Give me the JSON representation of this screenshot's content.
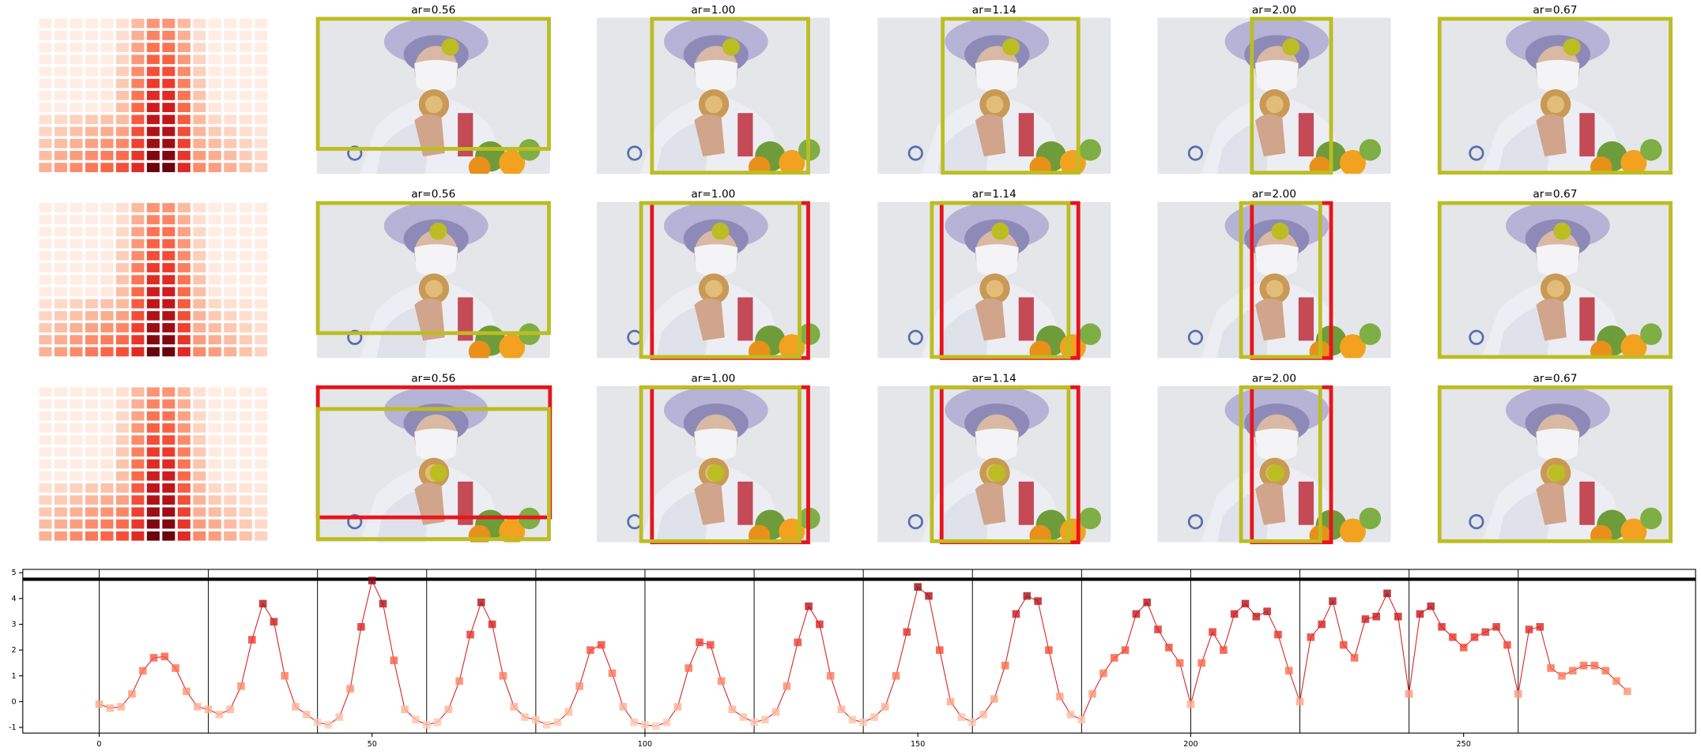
{
  "panel_titles": [
    [
      "ar=0.56",
      "ar=1.00",
      "ar=1.14",
      "ar=2.00",
      "ar=0.67"
    ],
    [
      "ar=0.56",
      "ar=1.00",
      "ar=1.14",
      "ar=2.00",
      "ar=0.67"
    ],
    [
      "ar=0.56",
      "ar=1.00",
      "ar=1.14",
      "ar=2.00",
      "ar=0.67"
    ]
  ],
  "chart_data": {
    "type": "line",
    "color": "#d62728",
    "x": [
      0,
      2,
      4,
      6,
      8,
      10,
      12,
      14,
      16,
      18,
      20,
      22,
      24,
      26,
      28,
      30,
      32,
      34,
      36,
      38,
      40,
      42,
      44,
      46,
      48,
      50,
      52,
      54,
      56,
      58,
      60,
      62,
      64,
      66,
      68,
      70,
      72,
      74,
      76,
      78,
      80,
      82,
      84,
      86,
      88,
      90,
      92,
      94,
      96,
      98,
      100,
      102,
      104,
      106,
      108,
      110,
      112,
      114,
      116,
      118,
      120,
      122,
      124,
      126,
      128,
      130,
      132,
      134,
      136,
      138,
      140,
      142,
      144,
      146,
      148,
      150,
      152,
      154,
      156,
      158,
      160,
      162,
      164,
      166,
      168,
      170,
      172,
      174,
      176,
      178,
      180,
      182,
      184,
      186,
      188,
      190,
      192,
      194,
      196,
      198,
      200,
      202,
      204,
      206,
      208,
      210,
      212,
      214,
      216,
      218,
      220,
      222,
      224,
      226,
      228,
      230,
      232,
      234,
      236,
      238,
      240,
      242,
      244,
      246,
      248,
      250,
      252,
      254,
      256,
      258,
      260,
      262,
      264,
      266,
      268,
      270,
      272,
      274,
      276,
      278,
      280
    ],
    "values": [
      -0.1,
      -0.25,
      -0.2,
      0.3,
      1.2,
      1.7,
      1.75,
      1.3,
      0.4,
      -0.2,
      -0.3,
      -0.5,
      -0.3,
      0.6,
      2.4,
      3.8,
      3.1,
      1.0,
      -0.2,
      -0.5,
      -0.8,
      -0.9,
      -0.6,
      0.5,
      2.9,
      4.7,
      3.8,
      1.6,
      -0.3,
      -0.7,
      -0.9,
      -0.8,
      -0.3,
      0.8,
      2.6,
      3.85,
      3.0,
      1.0,
      -0.2,
      -0.6,
      -0.7,
      -0.9,
      -0.8,
      -0.4,
      0.6,
      2.0,
      2.2,
      1.1,
      -0.2,
      -0.8,
      -0.9,
      -0.95,
      -0.8,
      -0.2,
      1.3,
      2.3,
      2.2,
      0.8,
      -0.3,
      -0.6,
      -0.8,
      -0.7,
      -0.4,
      0.6,
      2.3,
      3.7,
      3.0,
      1.0,
      -0.3,
      -0.7,
      -0.8,
      -0.6,
      -0.2,
      1.0,
      2.7,
      4.45,
      4.1,
      2.0,
      0.0,
      -0.6,
      -0.8,
      -0.5,
      0.1,
      1.4,
      3.4,
      4.1,
      3.9,
      2.0,
      0.2,
      -0.5,
      -0.7,
      0.3,
      1.1,
      1.7,
      2.0,
      3.4,
      3.85,
      2.8,
      2.1,
      1.5,
      -0.1,
      1.5,
      2.7,
      2.0,
      3.4,
      3.8,
      3.3,
      3.5,
      2.6,
      1.2,
      0.0,
      2.5,
      3.0,
      3.9,
      2.2,
      1.7,
      3.2,
      3.3,
      4.2,
      3.3,
      0.3,
      3.4,
      3.7,
      2.9,
      2.5,
      2.1,
      2.5,
      2.7,
      2.9,
      2.2,
      0.3,
      2.8,
      2.9,
      1.3,
      1.0,
      1.2,
      1.4,
      1.4,
      1.2,
      0.8,
      0.4
    ],
    "xlim": [
      -14,
      292.5
    ],
    "ylim": [
      -1.22,
      5.13
    ],
    "xticks": [
      0,
      50,
      100,
      150,
      200,
      250
    ],
    "yticks": [
      -1,
      0,
      1,
      2,
      3,
      4,
      5
    ],
    "vlines": [
      0,
      20,
      40,
      60,
      80,
      100,
      120,
      140,
      160,
      180,
      200,
      220,
      240,
      260
    ],
    "hline": 4.75
  }
}
